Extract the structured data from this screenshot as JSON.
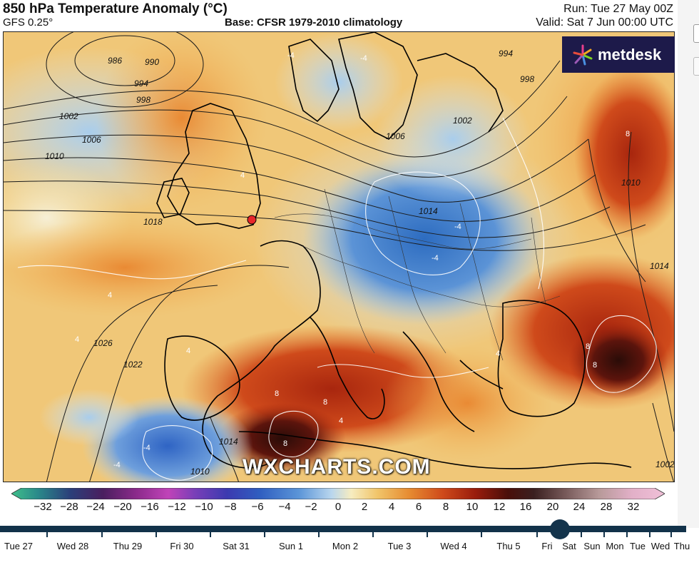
{
  "header": {
    "title": "850 hPa Temperature Anomaly (°C)",
    "model": "GFS 0.25°",
    "base": "Base: CFSR 1979-2010 climatology",
    "run": "Run: Tue 27 May 00Z",
    "valid": "Valid: Sat 7 Jun 00:00 UTC"
  },
  "brand": {
    "logo_text": "metdesk",
    "watermark": "WXCHARTS.COM",
    "logo_bg": "#1d1a4a"
  },
  "map": {
    "isobar_labels": [
      "986",
      "990",
      "994",
      "998",
      "1002",
      "1006",
      "1010",
      "1018",
      "1026",
      "1022",
      "1014",
      "1010",
      "994",
      "998",
      "1002",
      "1006",
      "1014",
      "1010",
      "1014",
      "1002"
    ],
    "anomaly_labels": [
      "-4",
      "-4",
      "4",
      "4",
      "-4",
      "4",
      "8",
      "8",
      "8",
      "8",
      "8",
      "8",
      "-4",
      "-4",
      "4",
      "-4",
      "4",
      "4"
    ],
    "marker_color": "#e8262b"
  },
  "colorbar": {
    "ticks": [
      "−32",
      "−28",
      "−24",
      "−20",
      "−16",
      "−12",
      "−10",
      "−8",
      "−6",
      "−4",
      "−2",
      "0",
      "2",
      "4",
      "6",
      "8",
      "10",
      "12",
      "16",
      "20",
      "24",
      "28",
      "32"
    ]
  },
  "timeline": {
    "days": [
      "Tue 27",
      "Wed 28",
      "Thu 29",
      "Fri 30",
      "Sat 31",
      "Sun 1",
      "Mon 2",
      "Tue 3",
      "Wed 4",
      "Thu 5",
      "Fri",
      "Sat",
      "Sun",
      "Mon",
      "Tue",
      "Wed",
      "Thu"
    ],
    "selected": "Sat"
  }
}
